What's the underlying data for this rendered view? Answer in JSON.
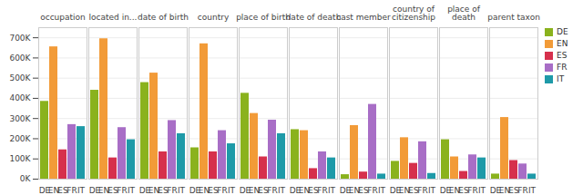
{
  "chart_data": {
    "type": "bar",
    "categories": [
      "occupation",
      "located in...",
      "date of birth",
      "country",
      "place of birth",
      "date of death",
      "cast member",
      "country of citizenship",
      "place of death",
      "parent taxon"
    ],
    "series": [
      {
        "name": "DE",
        "color": "#8ab21d",
        "values": [
          385000,
          440000,
          478000,
          155000,
          425000,
          245000,
          22000,
          88000,
          195000,
          25000
        ]
      },
      {
        "name": "EN",
        "color": "#f29b38",
        "values": [
          655000,
          695000,
          525000,
          670000,
          325000,
          240000,
          265000,
          205000,
          110000,
          305000
        ]
      },
      {
        "name": "ES",
        "color": "#d6304c",
        "values": [
          145000,
          105000,
          135000,
          135000,
          110000,
          52000,
          35000,
          78000,
          38000,
          92000
        ]
      },
      {
        "name": "FR",
        "color": "#a86ec6",
        "values": [
          270000,
          255000,
          290000,
          240000,
          292000,
          135000,
          370000,
          185000,
          120000,
          75000
        ]
      },
      {
        "name": "IT",
        "color": "#1e9aa8",
        "values": [
          260000,
          195000,
          225000,
          175000,
          225000,
          105000,
          25000,
          28000,
          105000,
          25000
        ]
      }
    ],
    "ylim": [
      0,
      750000
    ],
    "yticks": [
      {
        "value": 0,
        "label": "0K"
      },
      {
        "value": 100000,
        "label": "100K"
      },
      {
        "value": 200000,
        "label": "200K"
      },
      {
        "value": 300000,
        "label": "300K"
      },
      {
        "value": 400000,
        "label": "400K"
      },
      {
        "value": 500000,
        "label": "500K"
      },
      {
        "value": 600000,
        "label": "600K"
      },
      {
        "value": 700000,
        "label": "700K"
      }
    ],
    "grid": true,
    "legend": "right"
  }
}
